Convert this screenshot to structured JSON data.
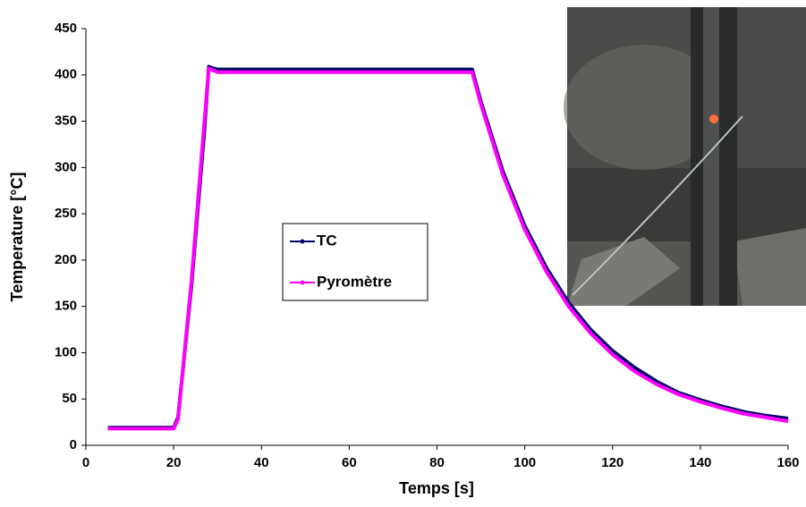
{
  "chart_data": {
    "type": "line",
    "xlabel": "Temps [s]",
    "ylabel": "Temperature [°C]",
    "x": [
      5,
      10,
      15,
      20,
      21,
      24,
      27,
      28,
      29,
      30,
      40,
      50,
      60,
      70,
      80,
      88,
      90,
      95,
      100,
      105,
      110,
      115,
      120,
      125,
      130,
      135,
      140,
      145,
      150,
      155,
      160
    ],
    "series": [
      {
        "name": "TC",
        "color": "#000066",
        "values": [
          19,
          19,
          19,
          19,
          30,
          170,
          340,
          409,
          407,
          406,
          406,
          406,
          406,
          406,
          406,
          406,
          371,
          296,
          237,
          191,
          154,
          125,
          102,
          84,
          69,
          57,
          49,
          42,
          36,
          32,
          29
        ]
      },
      {
        "name": "Pyromètre",
        "color": "#ff00ff",
        "values": [
          18,
          18,
          18,
          18,
          28,
          175,
          350,
          407,
          405,
          403,
          403,
          403,
          403,
          403,
          403,
          403,
          368,
          292,
          233,
          187,
          150,
          121,
          98,
          80,
          66,
          55,
          47,
          40,
          34,
          30,
          26
        ]
      }
    ],
    "xlim": [
      0,
      160
    ],
    "xticks": [
      0,
      20,
      40,
      60,
      80,
      100,
      120,
      140,
      160
    ],
    "ylim": [
      0,
      450
    ],
    "yticks": [
      0,
      50,
      100,
      150,
      200,
      250,
      300,
      350,
      400,
      450
    ],
    "grid": false
  }
}
